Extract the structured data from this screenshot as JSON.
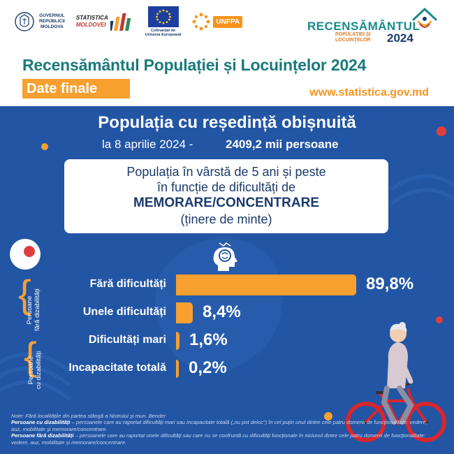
{
  "header": {
    "gov_logo_text": [
      "GUVERNUL",
      "REPUBLICII",
      "MOLDOVA"
    ],
    "stat_logo_text": [
      "STATISTICA",
      "MOLDOVEI"
    ],
    "eu_caption": [
      "Cofinanțat de",
      "Uniunea Europeană"
    ],
    "unfpa_label": "UNFPA",
    "census_logo_title": "RECENSĂMÂNTUL",
    "census_logo_sub": [
      "POPULAȚIEI ȘI",
      "LOCUINȚELOR"
    ],
    "census_logo_year": "2024",
    "main_title": "Recensământul Populației și Locuințelor 2024",
    "badge": "Date finale",
    "url": "www.statistica.gov.md"
  },
  "panel": {
    "title": "Populația cu reședință obișnuită",
    "date_text": "la 8 aprilie 2024 -",
    "population_text": "2409,2 mii persoane",
    "topic_line1": "Populația în vârstă de 5 ani și peste",
    "topic_line2": "în funcție de dificultăți de",
    "topic_strong": "MEMORARE/CONCENTRARE",
    "topic_line4": "(ținere de minte)",
    "group_no_disability": [
      "Persoane",
      "fără dizabilități"
    ],
    "group_disability": [
      "Persoane",
      "cu dizabilități"
    ]
  },
  "chart_data": {
    "type": "bar",
    "orientation": "horizontal",
    "categories": [
      "Fără dificultăți",
      "Unele dificultăți",
      "Dificultăți mari",
      "Incapacitate totală"
    ],
    "values": [
      89.8,
      8.4,
      1.6,
      0.2
    ],
    "value_labels": [
      "89,8%",
      "8,4%",
      "1,6%",
      "0,2%"
    ],
    "unit": "%",
    "bar_color": "#f7a030"
  },
  "notes": {
    "line1": "Note: Fără localitățile din partea stângă a Nistrului și mun. Bender",
    "p1_label": "Persoane cu dizabilități",
    "p1_text": " – persoanele care au raportat dificultăți mari sau incapacitate totală („nu pot deloc\") în cel puțin unul dintre cele patru domenii de funcționalitate: vedere, auz, mobilitate și memorare/concentrare.",
    "p2_label": "Persoane fără dizabilități",
    "p2_text": " – persoanele care au raportat unele dificultăți sau care nu se confruntă cu dificultăți funcționale în niciunul dintre cele patru domenii de funcționalitate: vedere, auz, mobilitate și memorare/concentrare."
  },
  "colors": {
    "panel_blue": "#2255a4",
    "accent_orange": "#f7a030",
    "title_teal": "#1a7a7a",
    "navy": "#1a3a6b"
  }
}
